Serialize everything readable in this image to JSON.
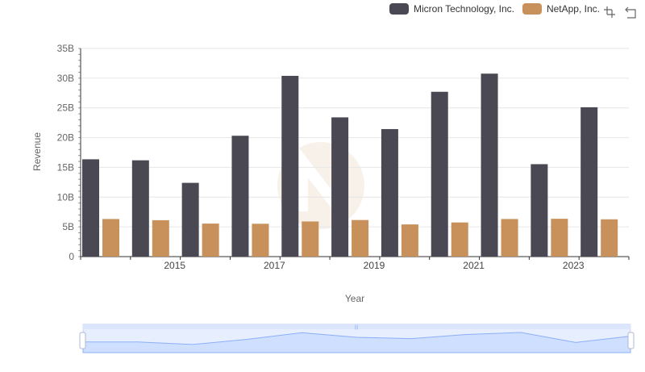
{
  "legend": {
    "items": [
      {
        "label": "Micron Technology, Inc.",
        "color": "#4a4953"
      },
      {
        "label": "NetApp, Inc.",
        "color": "#c8905a"
      }
    ]
  },
  "toolbox": {
    "zoom_icon": "zoom-icon",
    "restore_icon": "restore-icon"
  },
  "chart_data": {
    "type": "bar",
    "title": "",
    "xlabel": "Year",
    "ylabel": "Revenue",
    "ylim": [
      0,
      35000000000
    ],
    "yticks": [
      0,
      5000000000,
      10000000000,
      15000000000,
      20000000000,
      25000000000,
      30000000000,
      35000000000
    ],
    "ytick_labels": [
      "0",
      "5B",
      "10B",
      "15B",
      "20B",
      "25B",
      "30B",
      "35B"
    ],
    "categories": [
      "2014",
      "2015",
      "2016",
      "2017",
      "2018",
      "2019",
      "2020",
      "2021",
      "2022",
      "2023",
      "2024"
    ],
    "xtick_labels": [
      "",
      "2015",
      "",
      "2017",
      "",
      "2019",
      "",
      "2021",
      "",
      "2023",
      ""
    ],
    "series": [
      {
        "name": "Micron Technology, Inc.",
        "color": "#4a4953",
        "values": [
          16360000000,
          16190000000,
          12400000000,
          20320000000,
          30390000000,
          23410000000,
          21440000000,
          27710000000,
          30760000000,
          15540000000,
          25110000000
        ]
      },
      {
        "name": "NetApp, Inc.",
        "color": "#c8905a",
        "values": [
          6320000000,
          6120000000,
          5550000000,
          5520000000,
          5910000000,
          6150000000,
          5410000000,
          5740000000,
          6320000000,
          6360000000,
          6270000000
        ]
      }
    ],
    "grid": true,
    "legend_position": "top-right",
    "datazoom": {
      "start_percent": 0,
      "end_percent": 100,
      "handle_label": "|||"
    }
  }
}
